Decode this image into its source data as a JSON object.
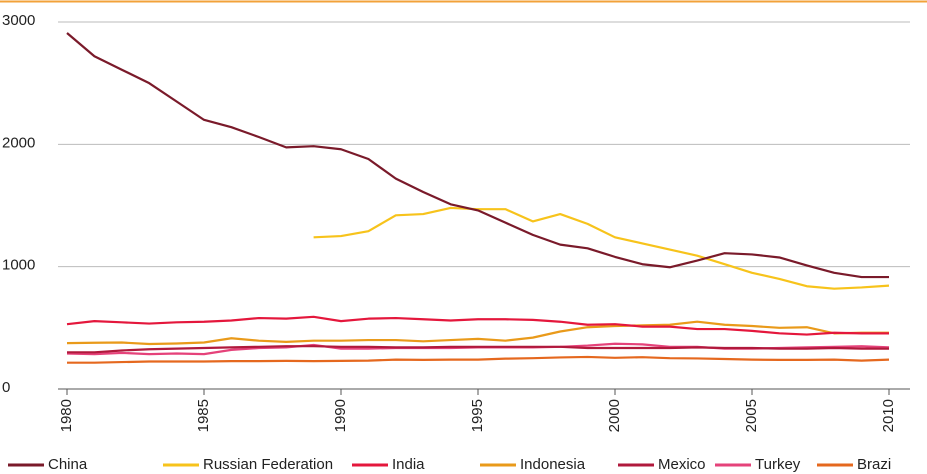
{
  "chart_data": {
    "type": "line",
    "x": [
      1980,
      1981,
      1982,
      1983,
      1984,
      1985,
      1986,
      1987,
      1988,
      1989,
      1990,
      1991,
      1992,
      1993,
      1994,
      1995,
      1996,
      1997,
      1998,
      1999,
      2000,
      2001,
      2002,
      2003,
      2004,
      2005,
      2006,
      2007,
      2008,
      2009,
      2010
    ],
    "xlim": [
      1980,
      2010
    ],
    "xticks": [
      1980,
      1985,
      1990,
      1995,
      2000,
      2005,
      2010
    ],
    "ylim": [
      0,
      3000
    ],
    "yticks": [
      0,
      1000,
      2000,
      3000
    ],
    "grid": true,
    "legend": "bottom",
    "series": [
      {
        "name": "China",
        "color": "#7a1a2a",
        "values": [
          2910,
          2720,
          2610,
          2500,
          2350,
          2200,
          2140,
          2060,
          1975,
          1985,
          1960,
          1880,
          1720,
          1610,
          1510,
          1460,
          1360,
          1260,
          1180,
          1150,
          1080,
          1020,
          995,
          1050,
          1110,
          1100,
          1075,
          1010,
          950,
          915,
          915
        ]
      },
      {
        "name": "Russian Federation",
        "color": "#f7c31b",
        "values": [
          null,
          null,
          null,
          null,
          null,
          null,
          null,
          null,
          null,
          1240,
          1250,
          1290,
          1420,
          1430,
          1480,
          1470,
          1470,
          1370,
          1430,
          1350,
          1240,
          1190,
          1140,
          1090,
          1020,
          950,
          900,
          840,
          820,
          830,
          845
        ]
      },
      {
        "name": "India",
        "color": "#e4173c",
        "values": [
          530,
          555,
          545,
          535,
          545,
          550,
          560,
          580,
          575,
          590,
          555,
          575,
          580,
          570,
          560,
          570,
          570,
          565,
          550,
          525,
          530,
          510,
          510,
          490,
          490,
          475,
          455,
          445,
          460,
          455,
          455
        ]
      },
      {
        "name": "Indonesia",
        "color": "#e99a1a",
        "values": [
          375,
          378,
          380,
          368,
          372,
          380,
          415,
          395,
          385,
          395,
          395,
          400,
          400,
          390,
          400,
          410,
          395,
          420,
          470,
          505,
          515,
          520,
          525,
          550,
          525,
          515,
          500,
          505,
          455,
          460,
          460
        ]
      },
      {
        "name": "Mexico",
        "color": "#b0193c",
        "values": [
          300,
          300,
          315,
          325,
          330,
          335,
          340,
          345,
          350,
          350,
          345,
          345,
          340,
          340,
          345,
          345,
          345,
          345,
          345,
          335,
          335,
          335,
          335,
          340,
          335,
          335,
          330,
          330,
          335,
          330,
          330
        ]
      },
      {
        "name": "Turkey",
        "color": "#e5427a",
        "values": [
          290,
          285,
          295,
          285,
          290,
          285,
          320,
          335,
          340,
          360,
          330,
          330,
          335,
          335,
          335,
          340,
          340,
          340,
          345,
          355,
          370,
          365,
          345,
          345,
          330,
          330,
          335,
          340,
          345,
          350,
          340
        ]
      },
      {
        "name": "Brazi",
        "color": "#e5681e",
        "values": [
          215,
          215,
          220,
          225,
          225,
          225,
          228,
          228,
          230,
          228,
          230,
          232,
          240,
          238,
          240,
          240,
          248,
          252,
          258,
          262,
          255,
          260,
          252,
          250,
          245,
          240,
          238,
          238,
          240,
          232,
          240
        ]
      }
    ]
  }
}
